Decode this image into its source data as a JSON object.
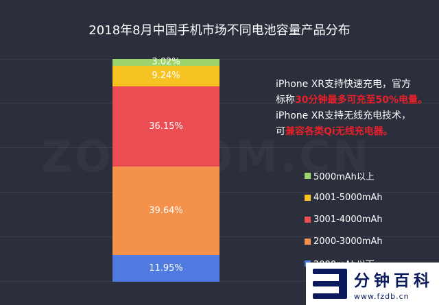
{
  "title": "2018年8月中国手机市场不同电池容量产品分布",
  "watermark": "ZOL.COM.CN",
  "annotation": {
    "line1": "iPhone XR支持快速充电，官方",
    "line2_prefix": "标称",
    "line2_highlight": "30分钟最多可充至50%电量。",
    "line3": "iPhone XR支持无线充电技术，",
    "line4_prefix": "可",
    "line4_highlight": "兼容各类Qi无线充电器。",
    "highlight_color": "#e8202a"
  },
  "logo": {
    "name": "分钟百科",
    "url": "www.fzdb.cn"
  },
  "chart_data": {
    "type": "bar",
    "stacked": true,
    "categories": [
      ""
    ],
    "unit": "%",
    "series": [
      {
        "name": "2000mAh以下",
        "values": [
          11.95
        ],
        "label": "11.95%",
        "color": "#4f7be0"
      },
      {
        "name": "2000-3000mAh",
        "values": [
          39.64
        ],
        "label": "39.64%",
        "color": "#f4914b"
      },
      {
        "name": "3001-4000mAh",
        "values": [
          36.15
        ],
        "label": "36.15%",
        "color": "#ea4d52"
      },
      {
        "name": "4001-5000mAh",
        "values": [
          9.24
        ],
        "label": "9.24%",
        "color": "#f6c323"
      },
      {
        "name": "5000mAh以上",
        "values": [
          3.02
        ],
        "label": "3.02%",
        "color": "#9ed46e"
      }
    ],
    "legend_order": [
      4,
      3,
      2,
      1,
      0
    ],
    "legend_position": "right",
    "ylim": [
      0,
      100
    ],
    "grid": true
  }
}
